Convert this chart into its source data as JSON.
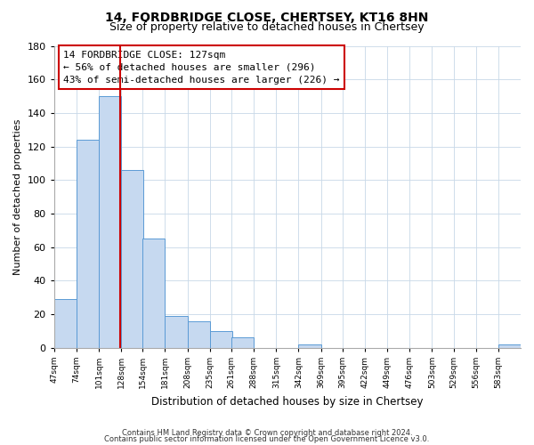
{
  "title": "14, FORDBRIDGE CLOSE, CHERTSEY, KT16 8HN",
  "subtitle": "Size of property relative to detached houses in Chertsey",
  "xlabel": "Distribution of detached houses by size in Chertsey",
  "ylabel": "Number of detached properties",
  "bar_edges": [
    47,
    74,
    101,
    128,
    154,
    181,
    208,
    235,
    261,
    288,
    315,
    342,
    369,
    395,
    422,
    449,
    476,
    503,
    529,
    556,
    583
  ],
  "bar_heights": [
    29,
    124,
    150,
    106,
    65,
    19,
    16,
    10,
    6,
    0,
    0,
    2,
    0,
    0,
    0,
    0,
    0,
    0,
    0,
    0,
    2
  ],
  "bar_color": "#c6d9f0",
  "bar_edgecolor": "#5b9bd5",
  "property_line_x": 127,
  "property_line_color": "#cc0000",
  "annotation_line1": "14 FORDBRIDGE CLOSE: 127sqm",
  "annotation_line2": "← 56% of detached houses are smaller (296)",
  "annotation_line3": "43% of semi-detached houses are larger (226) →",
  "ylim": [
    0,
    180
  ],
  "yticks": [
    0,
    20,
    40,
    60,
    80,
    100,
    120,
    140,
    160,
    180
  ],
  "tick_labels": [
    "47sqm",
    "74sqm",
    "101sqm",
    "128sqm",
    "154sqm",
    "181sqm",
    "208sqm",
    "235sqm",
    "261sqm",
    "288sqm",
    "315sqm",
    "342sqm",
    "369sqm",
    "395sqm",
    "422sqm",
    "449sqm",
    "476sqm",
    "503sqm",
    "529sqm",
    "556sqm",
    "583sqm"
  ],
  "footer_line1": "Contains HM Land Registry data © Crown copyright and database right 2024.",
  "footer_line2": "Contains public sector information licensed under the Open Government Licence v3.0.",
  "background_color": "#ffffff",
  "grid_color": "#c8d8e8",
  "ann_box_edgecolor": "#cc0000",
  "ann_font_size": 8.0,
  "title_fontsize": 10,
  "subtitle_fontsize": 9
}
